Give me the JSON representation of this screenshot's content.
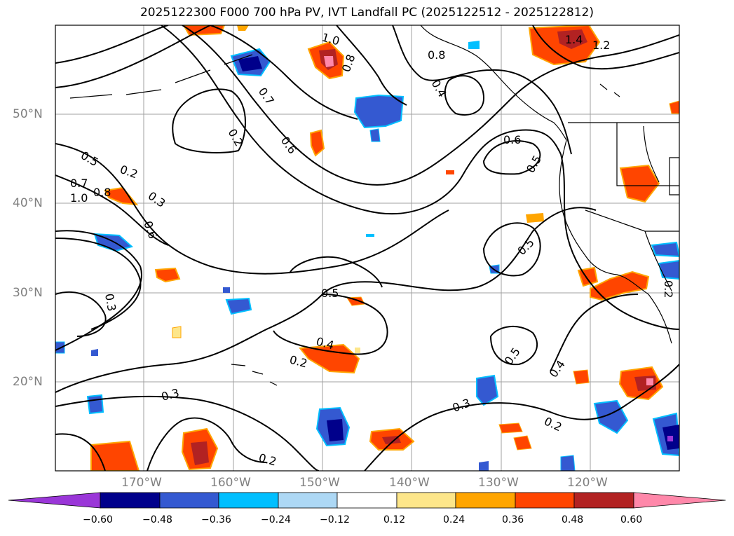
{
  "title": "2025122300 F000 700 hPa PV, IVT Landfall PC (2025122512 - 2025122812)",
  "lat_labels": [
    "50°N",
    "40°N",
    "30°N",
    "20°N"
  ],
  "lon_labels": [
    "170°W",
    "160°W",
    "150°W",
    "140°W",
    "130°W",
    "120°W"
  ],
  "contour_labels": [
    "0.2",
    "0.3",
    "0.4",
    "0.5",
    "0.6",
    "0.7",
    "0.8",
    "1.0",
    "1.2",
    "1.4"
  ],
  "colorbar": {
    "ticks": [
      "−0.60",
      "−0.48",
      "−0.36",
      "−0.24",
      "−0.12",
      "0.12",
      "0.24",
      "0.36",
      "0.48",
      "0.60"
    ],
    "colors": [
      "#9a36d8",
      "#00008b",
      "#3459d1",
      "#00bfff",
      "#add8f5",
      "#ffffff",
      "#fde68a",
      "#ffa500",
      "#ff4500",
      "#b22222",
      "#ff88aa"
    ]
  }
}
